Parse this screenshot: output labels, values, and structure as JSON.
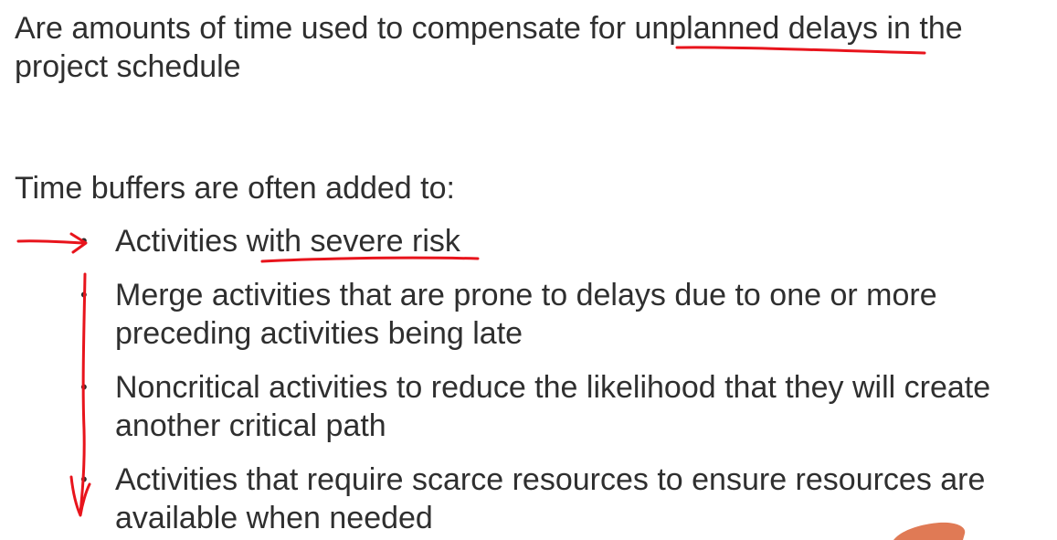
{
  "definition": {
    "line1": "Are amounts of time used to compensate for unplanned delays in the",
    "line2": "project schedule"
  },
  "intro": "Time buffers are often added to:",
  "bullets": [
    {
      "line1": "Activities with severe risk"
    },
    {
      "line1": "Merge activities that are prone to delays due to one or more",
      "line2": "preceding activities being late"
    },
    {
      "line1": "Noncritical activities to reduce the likelihood that they will create",
      "line2": "another critical path"
    },
    {
      "line1": "Activities that require scarce resources to ensure resources are",
      "line2": "available when needed"
    }
  ],
  "bullet_symbol": "•",
  "ink_color": "#e8141c",
  "pointer_color": "#e07a55"
}
